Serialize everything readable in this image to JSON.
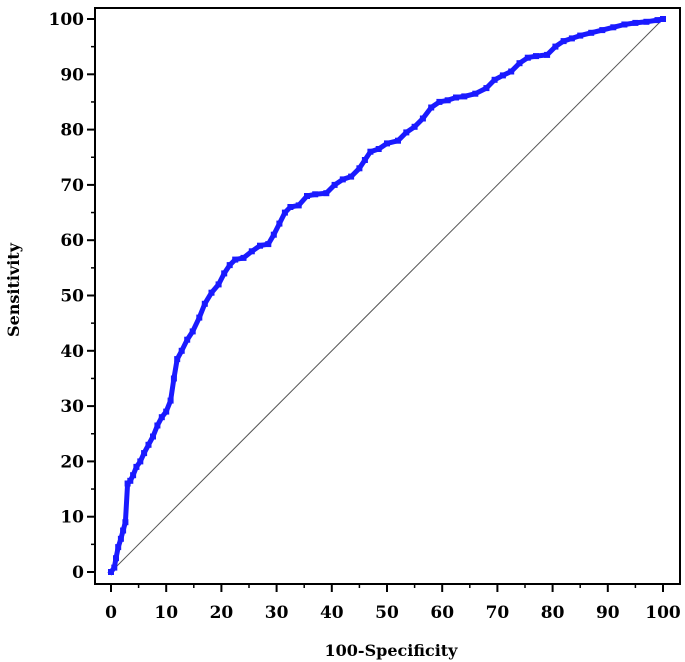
{
  "chart_data": {
    "type": "line",
    "title": "",
    "xlabel": "100-Specificity",
    "ylabel": "Sensitivity",
    "xlim": [
      0,
      100
    ],
    "ylim": [
      0,
      100
    ],
    "xticks": [
      0,
      10,
      20,
      30,
      40,
      50,
      60,
      70,
      80,
      90,
      100
    ],
    "yticks": [
      0,
      10,
      20,
      30,
      40,
      50,
      60,
      70,
      80,
      90,
      100
    ],
    "grid": false,
    "legend": "none",
    "colors": {
      "roc": "#1a1aff",
      "reference": "#555555",
      "axis": "#000000"
    },
    "series": [
      {
        "values": [
          [
            0,
            0
          ],
          [
            0.6,
            0.8
          ],
          [
            0.9,
            2.5
          ],
          [
            1.3,
            4.5
          ],
          [
            1.8,
            6
          ],
          [
            2.2,
            7.5
          ],
          [
            2.6,
            9
          ],
          [
            3.0,
            16
          ],
          [
            3.5,
            16.5
          ],
          [
            4.0,
            17.5
          ],
          [
            4.6,
            19
          ],
          [
            5.3,
            20
          ],
          [
            6.0,
            21.5
          ],
          [
            6.8,
            23
          ],
          [
            7.6,
            24.5
          ],
          [
            8.4,
            26.5
          ],
          [
            9.2,
            28
          ],
          [
            10.0,
            29
          ],
          [
            10.8,
            31
          ],
          [
            11.4,
            35
          ],
          [
            12.0,
            38.5
          ],
          [
            12.8,
            40
          ],
          [
            13.8,
            42
          ],
          [
            14.8,
            43.5
          ],
          [
            16.0,
            46
          ],
          [
            17.0,
            48.5
          ],
          [
            18.2,
            50.5
          ],
          [
            19.5,
            52
          ],
          [
            20.5,
            54
          ],
          [
            21.5,
            55.5
          ],
          [
            22.5,
            56.5
          ],
          [
            24.0,
            56.8
          ],
          [
            25.5,
            58
          ],
          [
            27.0,
            59
          ],
          [
            28.5,
            59.3
          ],
          [
            29.5,
            61
          ],
          [
            30.5,
            63
          ],
          [
            31.5,
            65
          ],
          [
            32.5,
            66
          ],
          [
            34.0,
            66.3
          ],
          [
            35.5,
            68
          ],
          [
            37.0,
            68.3
          ],
          [
            39.0,
            68.5
          ],
          [
            40.5,
            70
          ],
          [
            42.0,
            71
          ],
          [
            43.5,
            71.5
          ],
          [
            45.0,
            73
          ],
          [
            46.0,
            74.5
          ],
          [
            47.0,
            76
          ],
          [
            48.5,
            76.5
          ],
          [
            50.0,
            77.5
          ],
          [
            52.0,
            78
          ],
          [
            53.5,
            79.5
          ],
          [
            55.0,
            80.5
          ],
          [
            56.5,
            82
          ],
          [
            58.0,
            84
          ],
          [
            59.5,
            85
          ],
          [
            61.0,
            85.3
          ],
          [
            62.5,
            85.8
          ],
          [
            64.0,
            86
          ],
          [
            66.0,
            86.5
          ],
          [
            68.0,
            87.5
          ],
          [
            69.5,
            89
          ],
          [
            71.0,
            89.8
          ],
          [
            72.5,
            90.5
          ],
          [
            74.0,
            92
          ],
          [
            75.5,
            93
          ],
          [
            77.0,
            93.3
          ],
          [
            79.0,
            93.5
          ],
          [
            80.5,
            95
          ],
          [
            82.0,
            96
          ],
          [
            83.5,
            96.5
          ],
          [
            85.0,
            97
          ],
          [
            87.0,
            97.5
          ],
          [
            89.0,
            98
          ],
          [
            91.0,
            98.5
          ],
          [
            93.0,
            99
          ],
          [
            95.0,
            99.3
          ],
          [
            97.0,
            99.5
          ],
          [
            99.0,
            99.8
          ],
          [
            100,
            100
          ]
        ]
      },
      {
        "type": "reference",
        "values": [
          [
            0,
            0
          ],
          [
            100,
            100
          ]
        ]
      }
    ]
  }
}
